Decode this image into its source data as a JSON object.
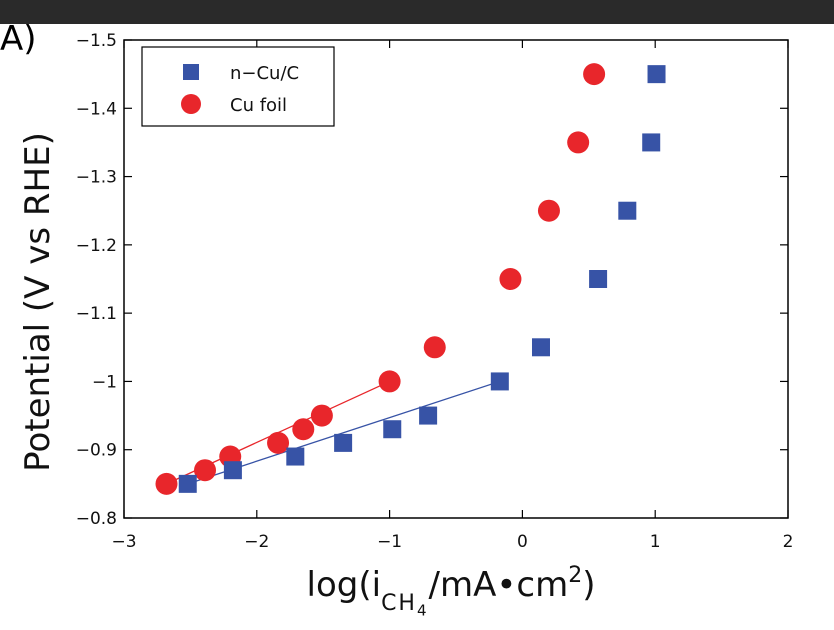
{
  "panel_label": "A)",
  "colors": {
    "series_ncu": "#3753a6",
    "series_cufoil": "#e8262b",
    "axis": "#000000",
    "header_bar": "#2a2a2a"
  },
  "xlabel": {
    "pre": "log(i",
    "sub": "CH",
    "mid": "/mA•cm",
    "sup": "2",
    "post": ")"
  },
  "chart_data": {
    "type": "scatter",
    "title": "",
    "ylabel": "Potential (V vs RHE)",
    "xlabel": "log(i_CH4/mA•cm^2)",
    "xlim": [
      -3,
      2
    ],
    "ylim": [
      -0.8,
      -1.5
    ],
    "xticks": [
      -3,
      -2,
      -1,
      0,
      1,
      2
    ],
    "xtick_labels": [
      "−3",
      "−2",
      "−1",
      "0",
      "1",
      "2"
    ],
    "yticks": [
      -1.5,
      -1.4,
      -1.3,
      -1.2,
      -1.1,
      -1.0,
      -0.9,
      -0.8
    ],
    "ytick_labels": [
      "−1.5",
      "−1.4",
      "−1.3",
      "−1.2",
      "−1.1",
      "−1",
      "−0.9",
      "−0.8"
    ],
    "legend_position": "top-left",
    "grid": false,
    "series": [
      {
        "name": "n−Cu/C",
        "marker": "square",
        "color": "#3753a6",
        "points": [
          [
            -2.52,
            -0.85
          ],
          [
            -2.18,
            -0.87
          ],
          [
            -1.71,
            -0.89
          ],
          [
            -1.35,
            -0.91
          ],
          [
            -0.98,
            -0.93
          ],
          [
            -0.71,
            -0.95
          ],
          [
            -0.17,
            -1.0
          ],
          [
            0.14,
            -1.05
          ],
          [
            0.57,
            -1.15
          ],
          [
            0.79,
            -1.25
          ],
          [
            0.97,
            -1.35
          ],
          [
            1.01,
            -1.45
          ]
        ],
        "fit": [
          [
            -2.52,
            -0.85
          ],
          [
            -0.17,
            -1.0
          ]
        ]
      },
      {
        "name": "Cu foil",
        "marker": "circle",
        "color": "#e8262b",
        "points": [
          [
            -2.68,
            -0.85
          ],
          [
            -2.39,
            -0.87
          ],
          [
            -2.2,
            -0.89
          ],
          [
            -1.84,
            -0.91
          ],
          [
            -1.65,
            -0.93
          ],
          [
            -1.51,
            -0.95
          ],
          [
            -1.0,
            -1.0
          ],
          [
            -0.66,
            -1.05
          ],
          [
            -0.09,
            -1.15
          ],
          [
            0.2,
            -1.25
          ],
          [
            0.42,
            -1.35
          ],
          [
            0.54,
            -1.45
          ]
        ],
        "fit": [
          [
            -2.68,
            -0.85
          ],
          [
            -1.0,
            -1.0
          ]
        ]
      }
    ]
  }
}
